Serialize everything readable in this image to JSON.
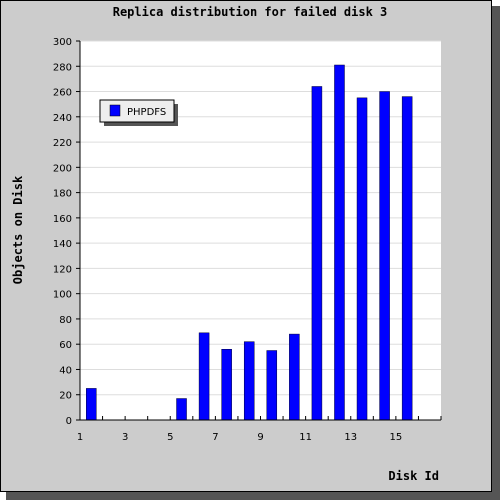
{
  "chart_data": {
    "type": "bar",
    "title": "Replica distribution for failed disk 3",
    "xlabel": "Disk Id",
    "ylabel": "Objects on Disk",
    "x_tick_labels": [
      "1",
      "3",
      "5",
      "7",
      "9",
      "11",
      "13",
      "15"
    ],
    "categories": [
      "1",
      "2",
      "3",
      "4",
      "5",
      "6",
      "7",
      "8",
      "9",
      "10",
      "11",
      "12",
      "13",
      "14",
      "15",
      "16"
    ],
    "series": [
      {
        "name": "PHPDFS",
        "color": "#0000ff",
        "values": [
          25,
          0,
          0,
          0,
          17,
          69,
          56,
          62,
          55,
          68,
          264,
          281,
          255,
          260,
          256,
          0
        ]
      }
    ],
    "ylim": [
      0,
      300
    ],
    "yticks": [
      0,
      20,
      40,
      60,
      80,
      100,
      120,
      140,
      160,
      180,
      200,
      220,
      240,
      260,
      280,
      300
    ],
    "grid": true,
    "legend_position": "top-left"
  }
}
